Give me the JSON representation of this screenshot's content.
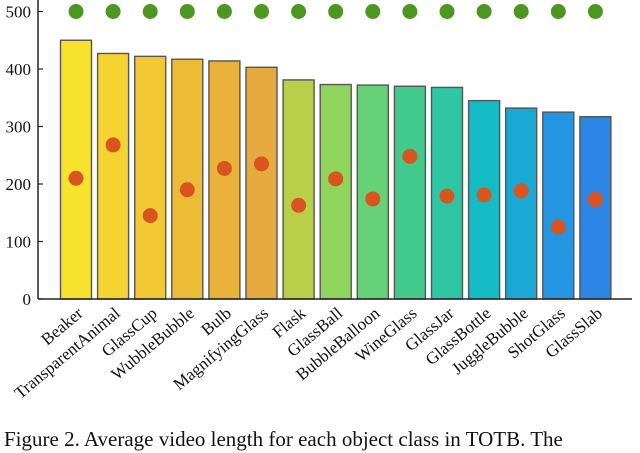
{
  "chart_data": {
    "type": "bar",
    "categories": [
      "Beaker",
      "TransparentAnimal",
      "GlassCup",
      "WubbleBubble",
      "Bulb",
      "MagnifyingGlass",
      "Flask",
      "GlassBall",
      "BubbleBalloon",
      "WineGlass",
      "GlassJar",
      "GlassBottle",
      "JuggleBubble",
      "ShotGlass",
      "GlassSlab"
    ],
    "values": [
      450,
      427,
      422,
      417,
      414,
      403,
      381,
      373,
      372,
      370,
      368,
      345,
      332,
      325,
      317
    ],
    "overlay_points": {
      "orange_markers": [
        210,
        268,
        145,
        190,
        227,
        235,
        163,
        209,
        174,
        248,
        179,
        181,
        188,
        125,
        173
      ],
      "green_markers": [
        500,
        500,
        500,
        500,
        500,
        500,
        500,
        500,
        500,
        500,
        500,
        500,
        500,
        500,
        500
      ]
    },
    "ylim": [
      0,
      520
    ],
    "yticks": [
      0,
      100,
      200,
      300,
      400,
      500
    ],
    "bar_colors": [
      "#f7e22e",
      "#f5d331",
      "#f2c934",
      "#edbc37",
      "#e9b23a",
      "#e7aa3e",
      "#b9cf49",
      "#8fd55d",
      "#66d176",
      "#42c98c",
      "#2fc6a4",
      "#14bbc4",
      "#1aa8d6",
      "#2495e0",
      "#2b86e6"
    ],
    "orange_marker_color": "#d9541f",
    "green_marker_color": "#4d961f",
    "grid": false,
    "legend": "none"
  },
  "caption": "Figure 2. Average video length for each object class in TOTB. The"
}
